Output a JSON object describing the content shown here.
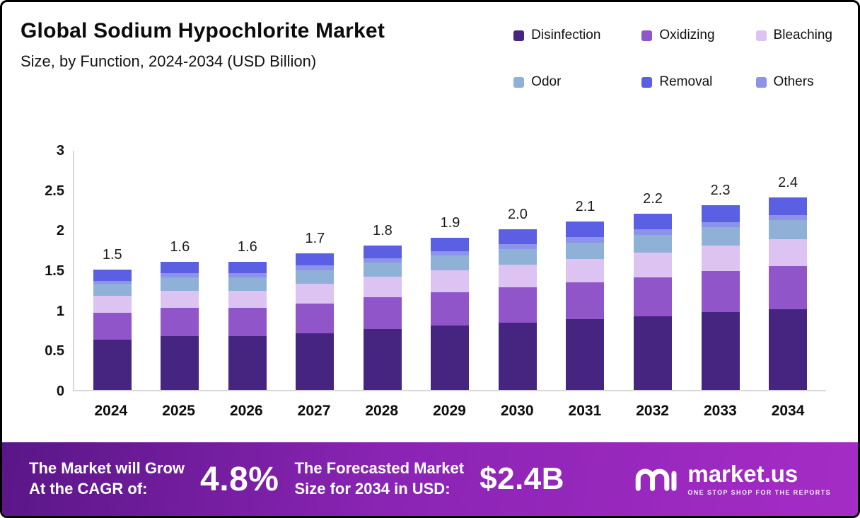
{
  "header": {
    "title": "Global Sodium Hypochlorite Market",
    "subtitle": "Size, by Function, 2024-2034 (USD Billion)"
  },
  "legend": [
    {
      "label": "Disinfection",
      "color": "#462580"
    },
    {
      "label": "Oxidizing",
      "color": "#8f55c9"
    },
    {
      "label": "Bleaching",
      "color": "#dcc3f1"
    },
    {
      "label": "Odor",
      "color": "#8fb1d8"
    },
    {
      "label": "Removal",
      "color": "#5a5fe3"
    },
    {
      "label": "Others",
      "color": "#8d93e9"
    }
  ],
  "chart_data": {
    "type": "bar",
    "stacked": true,
    "title": "Global Sodium Hypochlorite Market Size, by Function, 2024-2034 (USD Billion)",
    "xlabel": "",
    "ylabel": "",
    "ylim": [
      0,
      3
    ],
    "yticks": [
      0,
      0.5,
      1,
      1.5,
      2,
      2.5,
      3
    ],
    "grid": false,
    "legend_position": "top-right",
    "categories": [
      "2024",
      "2025",
      "2026",
      "2027",
      "2028",
      "2029",
      "2030",
      "2031",
      "2032",
      "2033",
      "2034"
    ],
    "totals": [
      1.5,
      1.6,
      1.6,
      1.7,
      1.8,
      1.9,
      2.0,
      2.1,
      2.2,
      2.3,
      2.4
    ],
    "series": [
      {
        "name": "Disinfection",
        "color": "#462580",
        "values": [
          0.63,
          0.67,
          0.67,
          0.71,
          0.76,
          0.8,
          0.84,
          0.88,
          0.92,
          0.97,
          1.01
        ]
      },
      {
        "name": "Oxidizing",
        "color": "#8f55c9",
        "values": [
          0.33,
          0.35,
          0.35,
          0.37,
          0.4,
          0.42,
          0.44,
          0.46,
          0.48,
          0.51,
          0.53
        ]
      },
      {
        "name": "Bleaching",
        "color": "#dcc3f1",
        "values": [
          0.21,
          0.22,
          0.22,
          0.24,
          0.25,
          0.27,
          0.28,
          0.29,
          0.31,
          0.32,
          0.34
        ]
      },
      {
        "name": "Odor",
        "color": "#8fb1d8",
        "values": [
          0.15,
          0.16,
          0.16,
          0.17,
          0.18,
          0.19,
          0.2,
          0.21,
          0.22,
          0.23,
          0.24
        ]
      },
      {
        "name": "Others",
        "color": "#8d93e9",
        "values": [
          0.04,
          0.06,
          0.06,
          0.06,
          0.05,
          0.05,
          0.06,
          0.07,
          0.07,
          0.06,
          0.06
        ]
      },
      {
        "name": "Removal",
        "color": "#5a5fe3",
        "values": [
          0.14,
          0.14,
          0.14,
          0.15,
          0.16,
          0.17,
          0.18,
          0.19,
          0.2,
          0.21,
          0.22
        ]
      }
    ]
  },
  "footer": {
    "cagr_label_line1": "The Market will Grow",
    "cagr_label_line2": "At the CAGR of:",
    "cagr_value": "4.8%",
    "forecast_label_line1": "The Forecasted Market",
    "forecast_label_line2": "Size for 2034 in USD:",
    "forecast_value": "$2.4B",
    "brand": "market.us",
    "brand_tagline": "ONE STOP SHOP FOR THE REPORTS"
  }
}
